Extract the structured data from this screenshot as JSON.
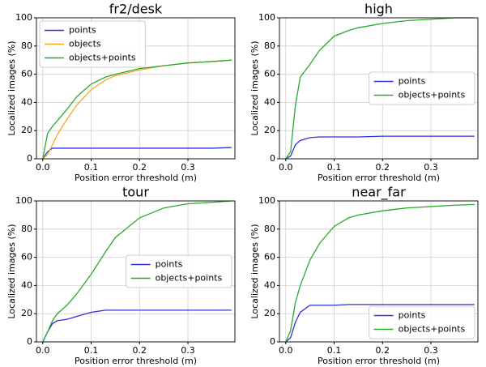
{
  "chart_data": [
    {
      "type": "line",
      "title": "fr2/desk",
      "xlabel": "Position error threshold (m)",
      "ylabel": "Localized images (%)",
      "x": [
        0,
        0.01,
        0.02,
        0.03,
        0.05,
        0.07,
        0.1,
        0.13,
        0.15,
        0.2,
        0.25,
        0.3,
        0.35,
        0.39
      ],
      "series": [
        {
          "name": "points",
          "color": "#3030d8",
          "values": [
            0,
            5,
            7.5,
            7.5,
            7.5,
            7.5,
            7.5,
            7.5,
            7.5,
            7.5,
            7.5,
            7.5,
            7.5,
            8
          ]
        },
        {
          "name": "objects",
          "color": "#f5a623",
          "values": [
            0,
            3,
            10,
            17,
            28,
            38,
            49,
            56,
            59,
            63,
            66,
            68,
            69,
            70
          ]
        },
        {
          "name": "objects+points",
          "color": "#2ca82c",
          "values": [
            0,
            18,
            23,
            27,
            35,
            44,
            53,
            58,
            60,
            64,
            66,
            68,
            69,
            70
          ]
        }
      ],
      "xlim": [
        -0.013,
        0.397
      ],
      "ylim": [
        0,
        100
      ],
      "xticks": [
        {
          "value": 0,
          "label": "0.0"
        },
        0.1,
        0.2,
        0.3
      ],
      "yticks": [
        0,
        20,
        40,
        60,
        80,
        100
      ],
      "grid": true,
      "legend": "upper left"
    },
    {
      "type": "line",
      "title": "high",
      "xlabel": "Position error threshold (m)",
      "ylabel": "Localized images (%)",
      "x": [
        0,
        0.01,
        0.02,
        0.03,
        0.05,
        0.07,
        0.1,
        0.13,
        0.15,
        0.2,
        0.25,
        0.3,
        0.35,
        0.39
      ],
      "series": [
        {
          "name": "points",
          "color": "#3030d8",
          "values": [
            0,
            2,
            10,
            13,
            15,
            15.5,
            15.5,
            15.5,
            15.5,
            16,
            16,
            16,
            16,
            16
          ]
        },
        {
          "name": "objects+points",
          "color": "#2ca82c",
          "values": [
            0,
            5,
            38,
            58,
            67,
            77,
            87,
            91,
            93,
            96,
            98,
            99,
            100,
            100
          ]
        }
      ],
      "xlim": [
        -0.013,
        0.397
      ],
      "ylim": [
        0,
        100
      ],
      "xticks": [
        {
          "value": 0,
          "label": "0.0"
        },
        0.1,
        0.2,
        0.3
      ],
      "yticks": [
        0,
        20,
        40,
        60,
        80,
        100
      ],
      "grid": true,
      "legend": "center right"
    },
    {
      "type": "line",
      "title": "tour",
      "xlabel": "Position error threshold (m)",
      "ylabel": "Localized images (%)",
      "x": [
        0,
        0.01,
        0.02,
        0.03,
        0.05,
        0.07,
        0.1,
        0.13,
        0.15,
        0.2,
        0.25,
        0.3,
        0.35,
        0.39
      ],
      "series": [
        {
          "name": "points",
          "color": "#3030d8",
          "values": [
            0,
            7,
            13,
            15,
            16,
            18,
            21,
            22.5,
            22.5,
            22.5,
            22.5,
            22.5,
            22.5,
            22.5
          ]
        },
        {
          "name": "objects+points",
          "color": "#2ca82c",
          "values": [
            0,
            7,
            15,
            20,
            26,
            34,
            48,
            64,
            74,
            88,
            95,
            98,
            99,
            100
          ]
        }
      ],
      "xlim": [
        -0.013,
        0.397
      ],
      "ylim": [
        0,
        100
      ],
      "xticks": [
        {
          "value": 0,
          "label": "0.0"
        },
        0.1,
        0.2,
        0.3
      ],
      "yticks": [
        0,
        20,
        40,
        60,
        80,
        100
      ],
      "grid": true,
      "legend": "center right"
    },
    {
      "type": "line",
      "title": "near_far",
      "xlabel": "Position error threshold (m)",
      "ylabel": "Localized images (%)",
      "x": [
        0,
        0.01,
        0.02,
        0.03,
        0.05,
        0.07,
        0.1,
        0.13,
        0.15,
        0.2,
        0.25,
        0.3,
        0.35,
        0.39
      ],
      "series": [
        {
          "name": "points",
          "color": "#3030d8",
          "values": [
            0,
            3,
            14,
            21,
            26,
            26,
            26,
            26.5,
            26.5,
            26.5,
            26.5,
            26.5,
            26.5,
            26.5
          ]
        },
        {
          "name": "objects+points",
          "color": "#2ca82c",
          "values": [
            0,
            8,
            28,
            40,
            58,
            70,
            82,
            88,
            90,
            93,
            95,
            96,
            97,
            97.5
          ]
        }
      ],
      "xlim": [
        -0.013,
        0.397
      ],
      "ylim": [
        0,
        100
      ],
      "xticks": [
        {
          "value": 0,
          "label": "0.0"
        },
        0.1,
        0.2,
        0.3
      ],
      "yticks": [
        0,
        20,
        40,
        60,
        80,
        100
      ],
      "grid": true,
      "legend": "lower right"
    }
  ]
}
